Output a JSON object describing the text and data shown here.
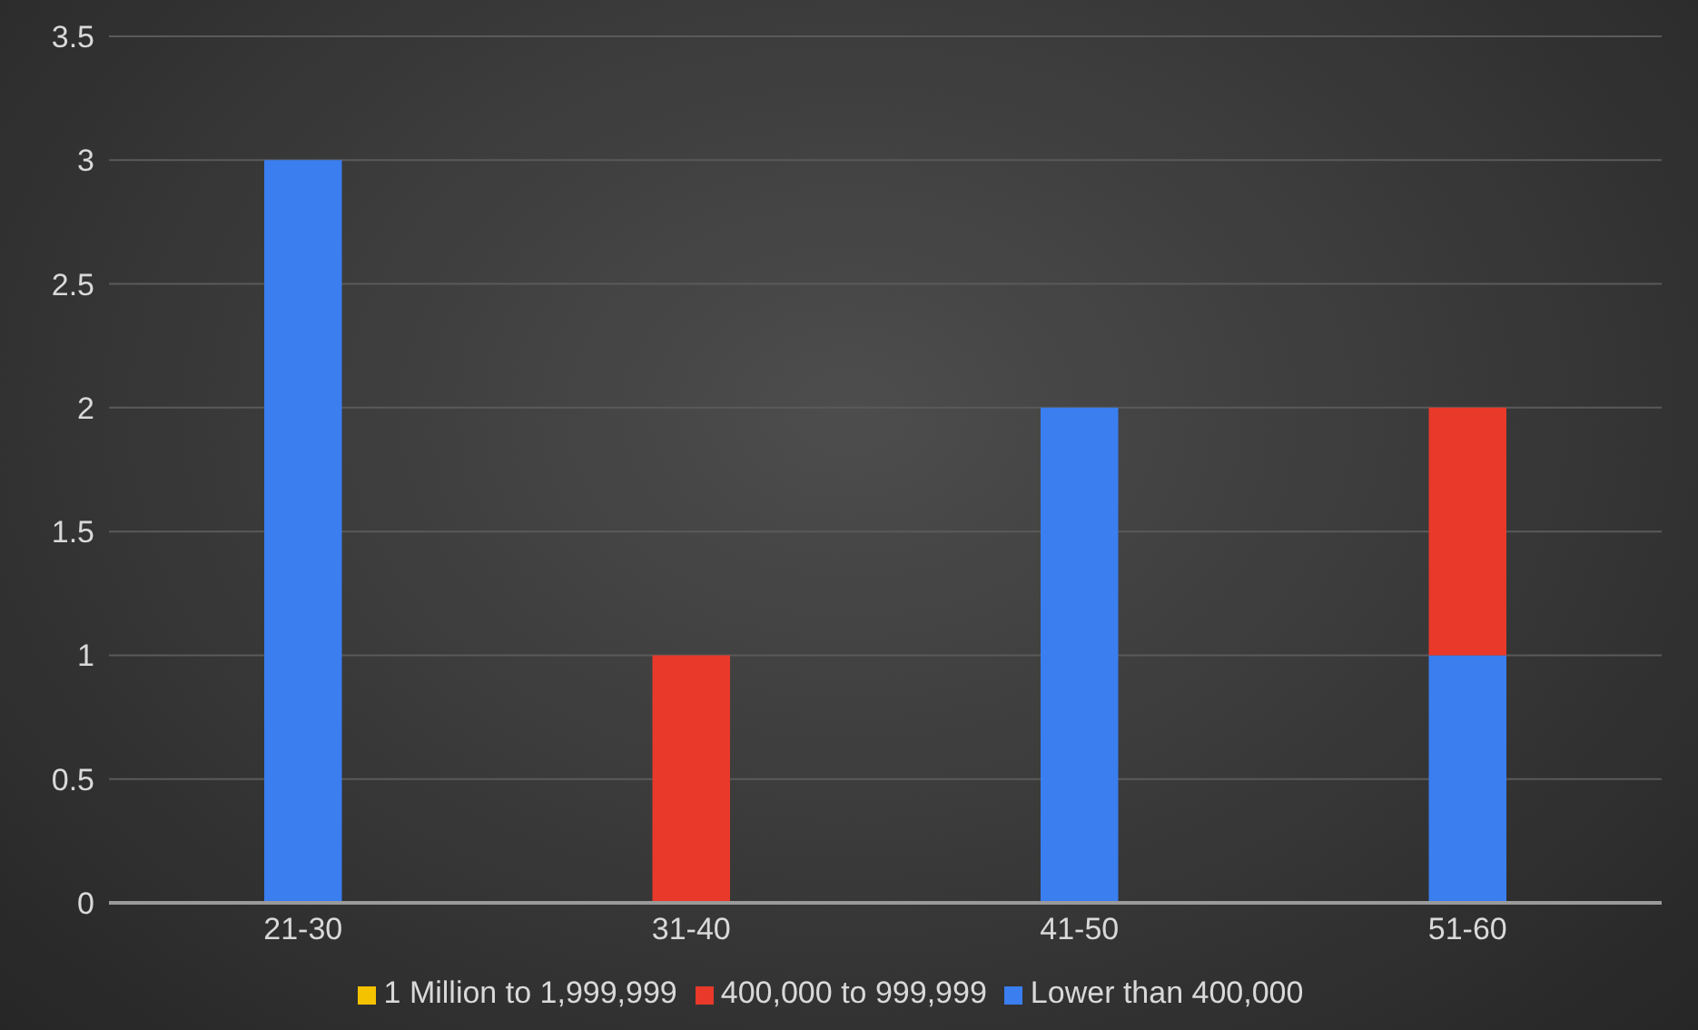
{
  "chart_data": {
    "type": "bar",
    "stacked": true,
    "categories": [
      "21-30",
      "31-40",
      "41-50",
      "51-60"
    ],
    "series": [
      {
        "name": "Lower than 400,000",
        "color": "#3a7ef0",
        "values": [
          3,
          0,
          2,
          1
        ]
      },
      {
        "name": "400,000 to 999,999",
        "color": "#e8392a",
        "values": [
          0,
          1,
          0,
          1
        ]
      },
      {
        "name": "1 Million to 1,999,999",
        "color": "#f5c200",
        "values": [
          0,
          0,
          0,
          0
        ]
      }
    ],
    "ylim": [
      0,
      3.5
    ],
    "yticks": [
      0,
      0.5,
      1,
      1.5,
      2,
      2.5,
      3,
      3.5
    ],
    "grid": "y",
    "legend": "bottom"
  }
}
